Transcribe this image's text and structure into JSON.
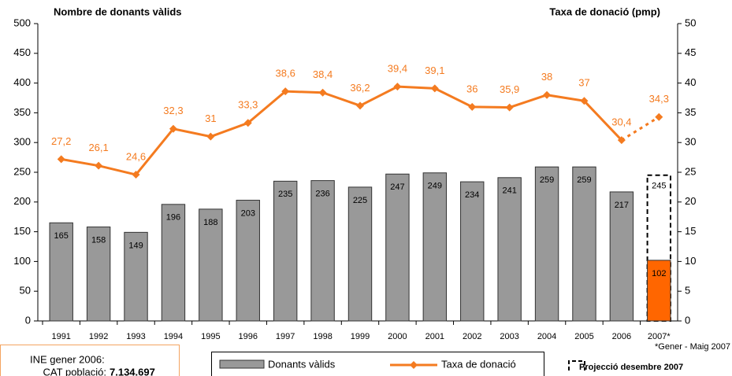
{
  "chart_data": {
    "type": "bar_line",
    "y_axis_label": "Nombre de donants vàlids",
    "y2_axis_label": "Taxa de donació (pmp)",
    "categories": [
      "1991",
      "1992",
      "1993",
      "1994",
      "1995",
      "1996",
      "1997",
      "1998",
      "1999",
      "2000",
      "2001",
      "2002",
      "2003",
      "2004",
      "2005",
      "2006",
      "2007*"
    ],
    "series": [
      {
        "name": "Donants vàlids",
        "type": "bar",
        "color": "#999999",
        "colors": [
          "#999999",
          "#999999",
          "#999999",
          "#999999",
          "#999999",
          "#999999",
          "#999999",
          "#999999",
          "#999999",
          "#999999",
          "#999999",
          "#999999",
          "#999999",
          "#999999",
          "#999999",
          "#999999",
          "#ff6600"
        ],
        "values": [
          165,
          158,
          149,
          196,
          188,
          203,
          235,
          236,
          225,
          247,
          249,
          234,
          241,
          259,
          259,
          217,
          102
        ]
      },
      {
        "name": "Taxa de donació",
        "type": "line",
        "axis": "y2",
        "color": "#f47b20",
        "values": [
          27.2,
          26.1,
          24.6,
          32.3,
          31,
          33.3,
          38.6,
          38.4,
          36.2,
          39.4,
          39.1,
          36,
          35.9,
          38,
          37,
          30.4,
          34.3
        ],
        "value_labels": [
          "27,2",
          "26,1",
          "24,6",
          "32,3",
          "31",
          "33,3",
          "38,6",
          "38,4",
          "36,2",
          "39,4",
          "39,1",
          "36",
          "35,9",
          "38",
          "37",
          "30,4",
          "34,3"
        ]
      },
      {
        "name": "Projecció desembre 2007",
        "type": "projection",
        "color": "#000000",
        "values": [
          null,
          null,
          null,
          null,
          null,
          null,
          null,
          null,
          null,
          null,
          null,
          null,
          null,
          null,
          null,
          null,
          245
        ]
      }
    ],
    "ylim": [
      0,
      500
    ],
    "yticks": [
      0,
      50,
      100,
      150,
      200,
      250,
      300,
      350,
      400,
      450,
      500
    ],
    "y2lim": [
      0,
      50
    ],
    "y2ticks": [
      0,
      5,
      10,
      15,
      20,
      25,
      30,
      35,
      40,
      45,
      50
    ],
    "footnote": "*Gener - Maig 2007",
    "info_box": {
      "title": "INE gener 2006:",
      "label": "CAT població:",
      "value": "7.134.697"
    }
  }
}
